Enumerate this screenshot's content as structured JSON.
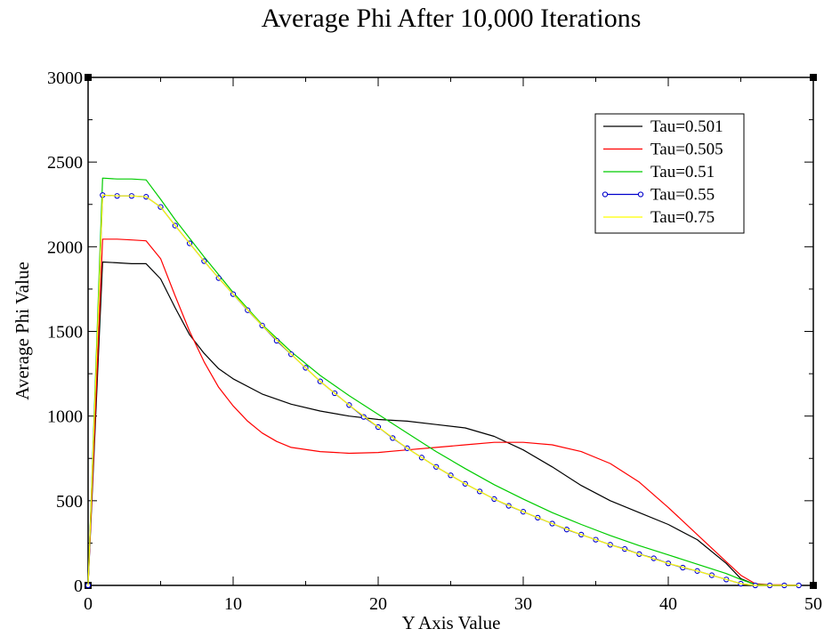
{
  "chart_data": {
    "type": "line",
    "title": "Average Phi After 10,000 Iterations",
    "xlabel": "Y Axis Value",
    "ylabel": "Average Phi Value",
    "xlim": [
      0,
      50
    ],
    "ylim": [
      0,
      3000
    ],
    "xticks": [
      0,
      10,
      20,
      30,
      40,
      50
    ],
    "yticks": [
      0,
      500,
      1000,
      1500,
      2000,
      2500,
      3000
    ],
    "xticks_minor_step": 5,
    "yticks_minor_step": 250,
    "grid": false,
    "legend_position": "top-right",
    "series": [
      {
        "name": "Tau=0.501",
        "color": "#000000",
        "marker": "none",
        "x": [
          0,
          1,
          2,
          3,
          4,
          5,
          6,
          7,
          8,
          9,
          10,
          12,
          14,
          16,
          18,
          20,
          22,
          24,
          26,
          28,
          30,
          32,
          34,
          36,
          38,
          40,
          42,
          44,
          45,
          46,
          47,
          48,
          49
        ],
        "y": [
          0,
          1910,
          1905,
          1900,
          1900,
          1810,
          1640,
          1480,
          1370,
          1280,
          1220,
          1130,
          1070,
          1030,
          1000,
          980,
          970,
          950,
          930,
          880,
          800,
          700,
          590,
          500,
          430,
          360,
          270,
          130,
          40,
          5,
          0,
          0,
          0
        ]
      },
      {
        "name": "Tau=0.505",
        "color": "#ff0000",
        "marker": "none",
        "x": [
          0,
          1,
          2,
          3,
          4,
          5,
          6,
          7,
          8,
          9,
          10,
          11,
          12,
          13,
          14,
          16,
          18,
          20,
          22,
          24,
          26,
          28,
          30,
          32,
          34,
          36,
          38,
          40,
          42,
          44,
          45,
          46,
          47,
          48,
          49
        ],
        "y": [
          0,
          2045,
          2045,
          2040,
          2035,
          1930,
          1710,
          1500,
          1320,
          1170,
          1060,
          970,
          900,
          850,
          815,
          790,
          780,
          785,
          800,
          815,
          830,
          845,
          845,
          830,
          790,
          720,
          610,
          460,
          300,
          140,
          60,
          10,
          3,
          3,
          0
        ]
      },
      {
        "name": "Tau=0.51",
        "color": "#00cc00",
        "marker": "none",
        "x": [
          0,
          1,
          2,
          3,
          4,
          5,
          6,
          8,
          10,
          12,
          14,
          16,
          18,
          20,
          22,
          24,
          26,
          28,
          30,
          32,
          34,
          36,
          38,
          40,
          42,
          44,
          45,
          46,
          47,
          48,
          49
        ],
        "y": [
          0,
          2405,
          2400,
          2400,
          2395,
          2280,
          2160,
          1940,
          1730,
          1540,
          1380,
          1240,
          1120,
          1010,
          900,
          790,
          690,
          595,
          510,
          430,
          360,
          295,
          235,
          180,
          125,
          70,
          35,
          5,
          2,
          0,
          0
        ]
      },
      {
        "name": "Tau=0.55",
        "color": "#0000cc",
        "marker": "circle",
        "x": [
          0,
          1,
          2,
          3,
          4,
          5,
          6,
          7,
          8,
          9,
          10,
          11,
          12,
          13,
          14,
          15,
          16,
          17,
          18,
          19,
          20,
          21,
          22,
          23,
          24,
          25,
          26,
          27,
          28,
          29,
          30,
          31,
          32,
          33,
          34,
          35,
          36,
          37,
          38,
          39,
          40,
          41,
          42,
          43,
          44,
          45,
          46,
          47,
          48,
          49
        ],
        "y": [
          0,
          2305,
          2300,
          2300,
          2295,
          2235,
          2125,
          2020,
          1915,
          1815,
          1720,
          1625,
          1535,
          1445,
          1365,
          1285,
          1205,
          1135,
          1065,
          995,
          935,
          870,
          810,
          755,
          700,
          650,
          600,
          555,
          510,
          470,
          435,
          400,
          365,
          330,
          300,
          270,
          240,
          215,
          185,
          160,
          130,
          105,
          85,
          60,
          35,
          10,
          0,
          0,
          0,
          0
        ]
      },
      {
        "name": "Tau=0.75",
        "color": "#ffff00",
        "marker": "none",
        "x": [
          0,
          1,
          2,
          3,
          4,
          5,
          6,
          7,
          8,
          9,
          10,
          12,
          14,
          16,
          18,
          20,
          22,
          24,
          26,
          28,
          30,
          32,
          34,
          36,
          38,
          40,
          42,
          44,
          45,
          46,
          47,
          48,
          49
        ],
        "y": [
          0,
          2305,
          2300,
          2300,
          2295,
          2235,
          2125,
          2020,
          1915,
          1815,
          1720,
          1535,
          1365,
          1205,
          1065,
          935,
          810,
          700,
          600,
          510,
          435,
          365,
          300,
          240,
          185,
          130,
          85,
          35,
          10,
          0,
          0,
          0,
          0
        ]
      }
    ]
  }
}
